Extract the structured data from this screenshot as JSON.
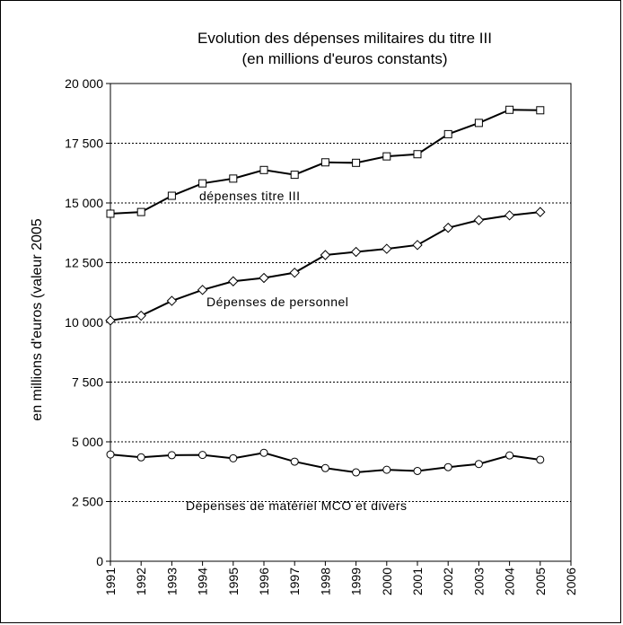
{
  "chart_data": {
    "type": "line",
    "title": "Evolution des  dépenses militaires du titre III",
    "subtitle": "(en millions d'euros constants)",
    "ylabel": "en millions d'euros (valeur 2005",
    "xlabel": "",
    "x": [
      1991,
      1992,
      1993,
      1994,
      1995,
      1996,
      1997,
      1998,
      1999,
      2000,
      2001,
      2002,
      2003,
      2004,
      2005
    ],
    "xticks": [
      "1991",
      "1992",
      "1993",
      "1994",
      "1995",
      "1996",
      "1997",
      "1998",
      "1999",
      "2000",
      "2001",
      "2002",
      "2003",
      "2004",
      "2005",
      "2006"
    ],
    "xlim": [
      1991,
      2006
    ],
    "ylim": [
      0,
      20000
    ],
    "yticks": [
      0,
      2500,
      5000,
      7500,
      10000,
      12500,
      15000,
      17500,
      20000
    ],
    "ytick_labels": [
      "0",
      "2 500",
      "5 000",
      "7 500",
      "10 000",
      "12 500",
      "15 000",
      "17 500",
      "20 000"
    ],
    "grid": "horizontal dotted",
    "series": [
      {
        "name": "dépenses titre III",
        "marker": "square",
        "values": [
          14550,
          14620,
          15300,
          15820,
          16020,
          16380,
          16180,
          16700,
          16680,
          16950,
          17040,
          17880,
          18350,
          18900,
          18880
        ]
      },
      {
        "name": "Dépenses de personnel",
        "marker": "diamond",
        "values": [
          10080,
          10280,
          10900,
          11360,
          11720,
          11860,
          12080,
          12820,
          12950,
          13080,
          13240,
          13960,
          14280,
          14480,
          14620
        ]
      },
      {
        "name": "Dépenses de matériel MCO et divers",
        "marker": "circle",
        "values": [
          4470,
          4350,
          4440,
          4450,
          4310,
          4540,
          4170,
          3900,
          3720,
          3830,
          3780,
          3940,
          4070,
          4430,
          4250
        ]
      }
    ]
  }
}
